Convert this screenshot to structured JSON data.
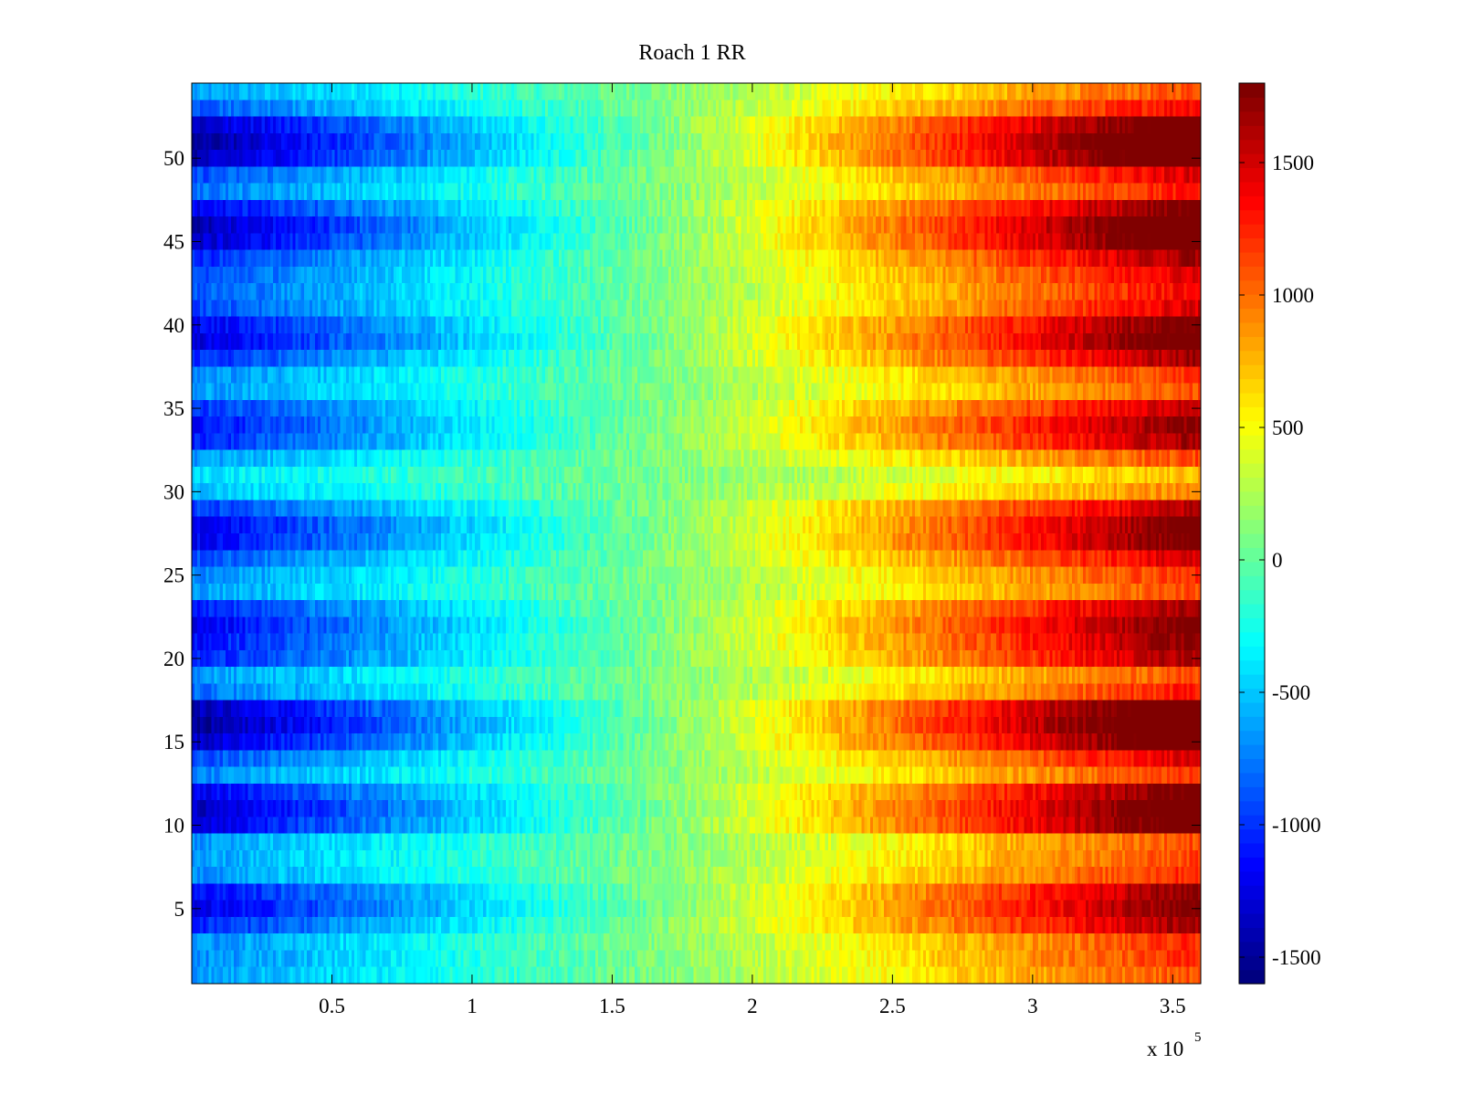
{
  "chart_data": {
    "type": "heatmap",
    "title": "Roach 1 RR",
    "xlabel": "",
    "ylabel": "",
    "x_multiplier_label": "x 10",
    "x_multiplier_exponent": "5",
    "xlim": [
      0,
      3.6
    ],
    "ylim": [
      0.5,
      54.5
    ],
    "xticks": [
      0.5,
      1,
      1.5,
      2,
      2.5,
      3,
      3.5
    ],
    "xtick_labels": [
      "0.5",
      "1",
      "1.5",
      "2",
      "2.5",
      "3",
      "3.5"
    ],
    "yticks": [
      5,
      10,
      15,
      20,
      25,
      30,
      35,
      40,
      45,
      50
    ],
    "ytick_labels": [
      "5",
      "10",
      "15",
      "20",
      "25",
      "30",
      "35",
      "40",
      "45",
      "50"
    ],
    "colormap": "jet",
    "clim": [
      -1600,
      1800
    ],
    "colorbar_ticks": [
      1500,
      1000,
      500,
      0,
      -500,
      -1000,
      -1500
    ],
    "colorbar_tick_labels": [
      "1500",
      "1000",
      "500",
      "0",
      "-500",
      "-1000",
      "-1500"
    ],
    "rows": 54,
    "columns": 360,
    "row_amplitudes": [
      0.55,
      0.6,
      0.6,
      0.85,
      0.95,
      0.9,
      0.6,
      0.55,
      0.55,
      1.0,
      1.05,
      0.95,
      0.6,
      0.75,
      1.05,
      1.15,
      1.1,
      0.65,
      0.55,
      0.85,
      0.9,
      0.95,
      0.85,
      0.55,
      0.6,
      0.75,
      0.95,
      0.95,
      0.8,
      0.45,
      0.35,
      0.55,
      0.85,
      0.9,
      0.8,
      0.55,
      0.6,
      0.85,
      1.0,
      0.95,
      0.75,
      0.7,
      0.75,
      0.85,
      1.05,
      1.1,
      0.95,
      0.65,
      0.75,
      1.1,
      1.15,
      1.05,
      0.7,
      0.55
    ],
    "row_offsets": [
      -50,
      -30,
      -20,
      0,
      -40,
      -20,
      0,
      -30,
      -50,
      0,
      -20,
      0,
      -40,
      -20,
      0,
      -20,
      0,
      -30,
      -50,
      -20,
      0,
      -10,
      0,
      -40,
      -30,
      -10,
      0,
      -20,
      0,
      -60,
      -80,
      -40,
      -10,
      0,
      -20,
      -50,
      -40,
      0,
      -10,
      0,
      -30,
      -40,
      -20,
      0,
      0,
      -10,
      0,
      -30,
      -20,
      0,
      -10,
      0,
      -30,
      -40
    ],
    "noise_amplitude": 260,
    "value_at_x0": -1500,
    "value_at_xmax": 1800
  },
  "colors": {
    "background": "#ffffff",
    "axes_edge": "#000000"
  }
}
